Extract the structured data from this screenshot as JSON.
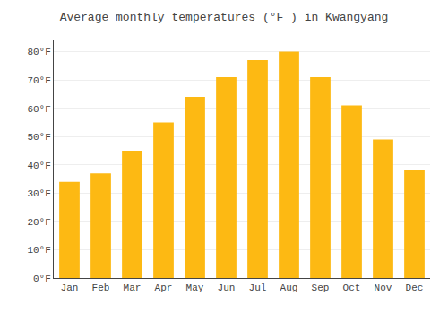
{
  "chart_data": {
    "type": "bar",
    "title": "Average monthly temperatures (°F ) in Kwangyang",
    "categories": [
      "Jan",
      "Feb",
      "Mar",
      "Apr",
      "May",
      "Jun",
      "Jul",
      "Aug",
      "Sep",
      "Oct",
      "Nov",
      "Dec"
    ],
    "values": [
      34,
      37,
      45,
      55,
      64,
      71,
      77,
      80,
      71,
      61,
      49,
      38
    ],
    "color": "#FDB913",
    "ylim": [
      0,
      84
    ],
    "yticks": [
      {
        "value": 0,
        "label": "0°F"
      },
      {
        "value": 10,
        "label": "10°F"
      },
      {
        "value": 20,
        "label": "20°F"
      },
      {
        "value": 30,
        "label": "30°F"
      },
      {
        "value": 40,
        "label": "40°F"
      },
      {
        "value": 50,
        "label": "50°F"
      },
      {
        "value": 60,
        "label": "60°F"
      },
      {
        "value": 70,
        "label": "70°F"
      },
      {
        "value": 80,
        "label": "80°F"
      }
    ],
    "grid": true
  }
}
